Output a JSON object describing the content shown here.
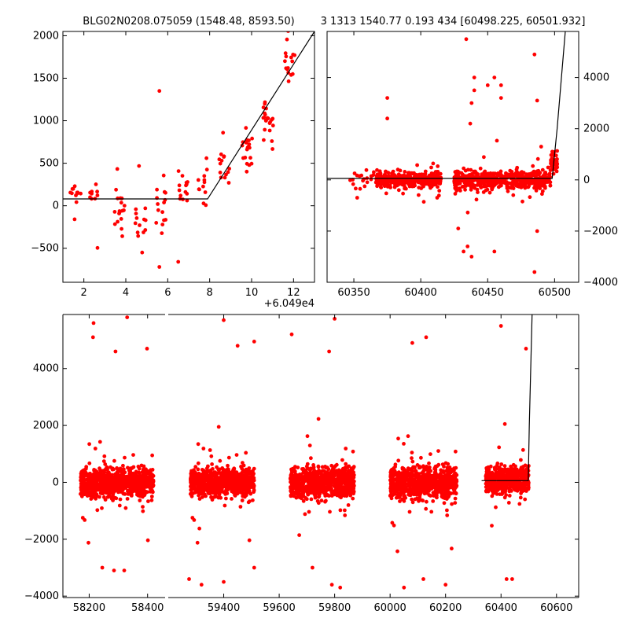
{
  "titles": {
    "left": "BLG02N0208.075059 (1548.48, 8593.50)",
    "right": "3 1313 1540.77 0.193 434 [60498.225, 60501.932]"
  },
  "colors": {
    "points": "#ff0000",
    "model": "#000000",
    "axes": "#000000"
  },
  "chart_data": [
    {
      "type": "scatter",
      "panel": "top-left",
      "x_offset_label": "+6.049e4",
      "xlim": [
        1.0,
        13.0
      ],
      "ylim": [
        -900,
        2050
      ],
      "xticks": [
        2,
        4,
        6,
        8,
        10,
        12
      ],
      "yticks": [
        -500,
        0,
        500,
        1000,
        1500,
        2000
      ],
      "clusters": [
        {
          "x": 1.6,
          "y": 100,
          "spread": 150,
          "n": 12
        },
        {
          "x": 2.5,
          "y": 120,
          "spread": 150,
          "n": 10
        },
        {
          "x": 3.7,
          "y": -100,
          "spread": 220,
          "n": 18
        },
        {
          "x": 4.7,
          "y": -150,
          "spread": 250,
          "n": 14
        },
        {
          "x": 5.7,
          "y": 0,
          "spread": 350,
          "n": 15
        },
        {
          "x": 6.7,
          "y": 150,
          "spread": 250,
          "n": 14
        },
        {
          "x": 7.7,
          "y": 330,
          "spread": 220,
          "n": 12
        },
        {
          "x": 8.7,
          "y": 500,
          "spread": 220,
          "n": 14
        },
        {
          "x": 9.8,
          "y": 650,
          "spread": 200,
          "n": 20
        },
        {
          "x": 10.8,
          "y": 1000,
          "spread": 200,
          "n": 22
        },
        {
          "x": 11.8,
          "y": 1650,
          "spread": 180,
          "n": 16
        }
      ],
      "outliers": [
        [
          5.6,
          1350
        ],
        [
          6.5,
          -660
        ],
        [
          5.6,
          -720
        ]
      ],
      "model_line": [
        [
          1.0,
          80
        ],
        [
          7.9,
          80
        ],
        [
          13.0,
          2050
        ]
      ]
    },
    {
      "type": "scatter",
      "panel": "top-right",
      "xlim": [
        60330,
        60518
      ],
      "ylim": [
        -4000,
        5800
      ],
      "xticks": [
        60350,
        60400,
        60450,
        60500
      ],
      "yticks": [
        -4000,
        -2000,
        0,
        2000,
        4000
      ],
      "y_axis_side": "right",
      "clusters": [
        {
          "x0": 60345,
          "x1": 60365,
          "y": 100,
          "spread": 350,
          "n": 20
        },
        {
          "x0": 60366,
          "x1": 60415,
          "y": 0,
          "spread": 260,
          "n": 420
        },
        {
          "x0": 60425,
          "x1": 60497,
          "y": 0,
          "spread": 330,
          "n": 520
        },
        {
          "x0": 60497,
          "x1": 60502,
          "y": 700,
          "spread": 450,
          "n": 40
        }
      ],
      "outliers": [
        [
          60375,
          3200
        ],
        [
          60375,
          2400
        ],
        [
          60434,
          5500
        ],
        [
          60440,
          4000
        ],
        [
          60440,
          3500
        ],
        [
          60438,
          3000
        ],
        [
          60437,
          2200
        ],
        [
          60450,
          3700
        ],
        [
          60455,
          4000
        ],
        [
          60460,
          3700
        ],
        [
          60460,
          3200
        ],
        [
          60485,
          4900
        ],
        [
          60487,
          3100
        ],
        [
          60485,
          -3600
        ],
        [
          60487,
          -2000
        ],
        [
          60438,
          -3000
        ],
        [
          60435,
          -2600
        ],
        [
          60428,
          -1900
        ],
        [
          60432,
          -2800
        ],
        [
          60455,
          -2800
        ],
        [
          60490,
          1300
        ]
      ],
      "model_line": [
        [
          60330,
          60
        ],
        [
          60498.2,
          60
        ],
        [
          60501.9,
          2000
        ],
        [
          60508,
          5800
        ]
      ]
    },
    {
      "type": "scatter",
      "panel": "bottom",
      "xlim": [
        58110,
        60680
      ],
      "ylim": [
        -4050,
        5900
      ],
      "xticks": [
        58200,
        58400,
        59400,
        59600,
        59800,
        60000,
        60200,
        60400,
        60600
      ],
      "yticks": [
        -4000,
        -2000,
        0,
        2000,
        4000
      ],
      "segments": [
        {
          "range": [
            58110,
            58460
          ],
          "xmin": 58110,
          "xmax": 58460
        },
        {
          "range": [
            59200,
            60680
          ],
          "xmin": 59200,
          "xmax": 60680
        }
      ],
      "clusters": [
        {
          "x0": 58170,
          "x1": 58420,
          "y": 0,
          "spread": 420,
          "n": 900
        },
        {
          "x0": 59280,
          "x1": 59510,
          "y": 0,
          "spread": 420,
          "n": 800
        },
        {
          "x0": 59640,
          "x1": 59870,
          "y": 0,
          "spread": 480,
          "n": 800
        },
        {
          "x0": 60000,
          "x1": 60240,
          "y": 0,
          "spread": 480,
          "n": 800
        },
        {
          "x0": 60345,
          "x1": 60500,
          "y": 100,
          "spread": 420,
          "n": 500
        }
      ],
      "outliers": [
        [
          58215,
          5600
        ],
        [
          58213,
          5100
        ],
        [
          58330,
          5800
        ],
        [
          58290,
          4600
        ],
        [
          58398,
          4700
        ],
        [
          58285,
          -3100
        ],
        [
          58245,
          -3000
        ],
        [
          58320,
          -3100
        ],
        [
          59400,
          5700
        ],
        [
          59450,
          4800
        ],
        [
          59510,
          4950
        ],
        [
          59320,
          -3600
        ],
        [
          59400,
          -3500
        ],
        [
          59275,
          -3400
        ],
        [
          59510,
          -3000
        ],
        [
          59645,
          5200
        ],
        [
          59800,
          5750
        ],
        [
          59780,
          4600
        ],
        [
          59720,
          -3000
        ],
        [
          59790,
          -3600
        ],
        [
          59820,
          -3700
        ],
        [
          60080,
          4900
        ],
        [
          60130,
          5100
        ],
        [
          60400,
          5500
        ],
        [
          60490,
          4700
        ],
        [
          60050,
          -3700
        ],
        [
          60120,
          -3400
        ],
        [
          60200,
          -3600
        ],
        [
          60420,
          -3400
        ],
        [
          60440,
          -3400
        ]
      ],
      "model_line": [
        [
          60330,
          60
        ],
        [
          60498.2,
          60
        ],
        [
          60501.9,
          2000
        ],
        [
          60512,
          5900
        ]
      ]
    }
  ]
}
